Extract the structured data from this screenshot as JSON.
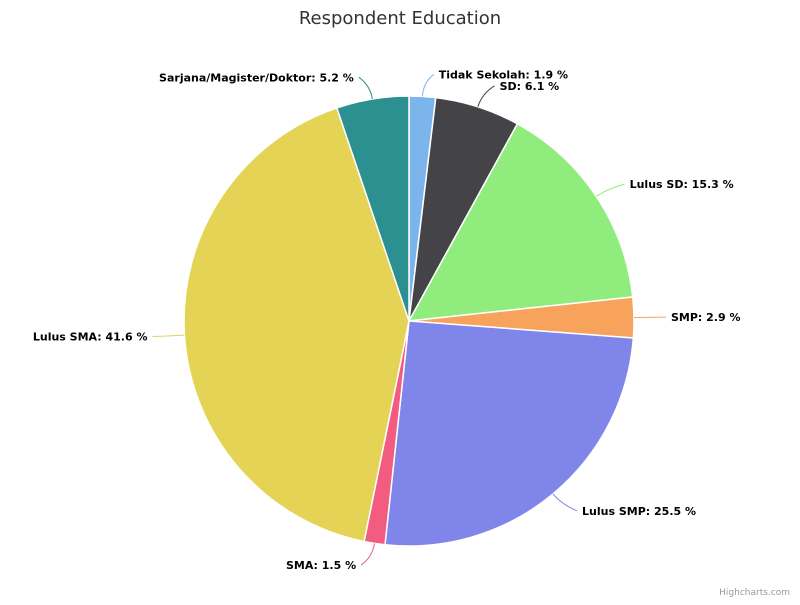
{
  "credits": "Highcharts.com",
  "chart_data": {
    "type": "pie",
    "title": "Respondent Education",
    "label_format": "{name}: {value} %",
    "slices": [
      {
        "name": "Tidak Sekolah",
        "value": 1.9,
        "color": "#7cb5ec"
      },
      {
        "name": "SD",
        "value": 6.1,
        "color": "#434348"
      },
      {
        "name": "Lulus SD",
        "value": 15.3,
        "color": "#90ed7d"
      },
      {
        "name": "SMP",
        "value": 2.9,
        "color": "#f7a35c"
      },
      {
        "name": "Lulus SMP",
        "value": 25.5,
        "color": "#8085e9"
      },
      {
        "name": "SMA",
        "value": 1.5,
        "color": "#f15c80"
      },
      {
        "name": "Lulus SMA",
        "value": 41.6,
        "color": "#e4d354"
      },
      {
        "name": "Sarjana/Magister/Doktor",
        "value": 5.2,
        "color": "#2b908f"
      }
    ]
  }
}
